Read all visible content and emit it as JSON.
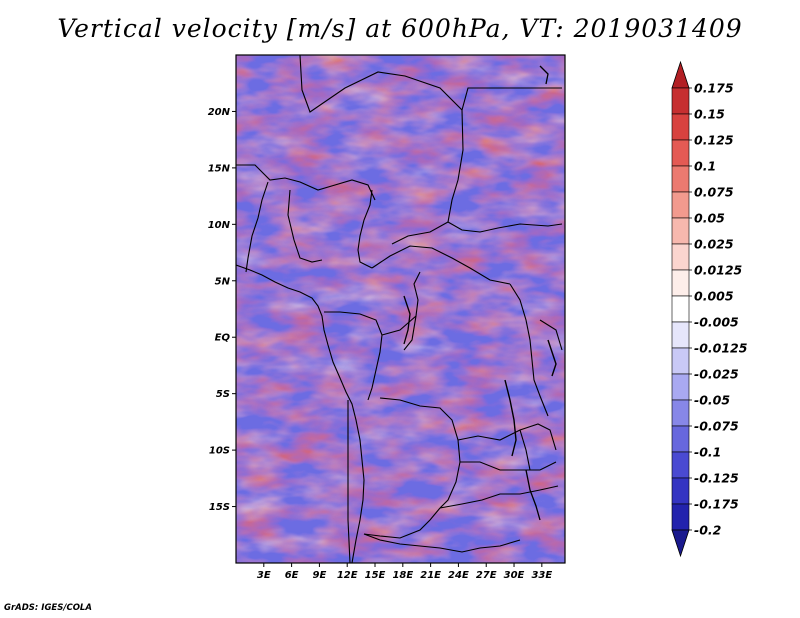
{
  "title": "Vertical velocity [m/s] at 600hPa, VT: 2019031409",
  "credit": "GrADS: IGES/COLA",
  "map": {
    "lon_range": [
      0,
      35.5
    ],
    "lat_range": [
      -20,
      25
    ],
    "lat_ticks": [
      {
        "value": 20,
        "label": "20N"
      },
      {
        "value": 15,
        "label": "15N"
      },
      {
        "value": 10,
        "label": "10N"
      },
      {
        "value": 5,
        "label": "5N"
      },
      {
        "value": 0,
        "label": "EQ"
      },
      {
        "value": -5,
        "label": "5S"
      },
      {
        "value": -10,
        "label": "10S"
      },
      {
        "value": -15,
        "label": "15S"
      }
    ],
    "lon_ticks": [
      {
        "value": 3,
        "label": "3E"
      },
      {
        "value": 6,
        "label": "6E"
      },
      {
        "value": 9,
        "label": "9E"
      },
      {
        "value": 12,
        "label": "12E"
      },
      {
        "value": 15,
        "label": "15E"
      },
      {
        "value": 18,
        "label": "18E"
      },
      {
        "value": 21,
        "label": "21E"
      },
      {
        "value": 24,
        "label": "24E"
      },
      {
        "value": 27,
        "label": "27E"
      },
      {
        "value": 30,
        "label": "30E"
      },
      {
        "value": 33,
        "label": "33E"
      }
    ]
  },
  "colorbar": {
    "labels": [
      "0.175",
      "0.15",
      "0.125",
      "0.1",
      "0.075",
      "0.05",
      "0.025",
      "0.0125",
      "0.005",
      "-0.005",
      "-0.0125",
      "-0.025",
      "-0.05",
      "-0.075",
      "-0.1",
      "-0.125",
      "-0.175",
      "-0.2"
    ],
    "colors": [
      "#b21f24",
      "#c62f30",
      "#d8423f",
      "#e45a54",
      "#ec7a70",
      "#f29a8e",
      "#f7b8ae",
      "#fbd5cf",
      "#fdeeea",
      "#ffffff",
      "#e6e6fb",
      "#c9c9f6",
      "#a9a9f1",
      "#8787e8",
      "#6767dd",
      "#4a4ad2",
      "#3434c2",
      "#2323ad",
      "#1a1a8e"
    ]
  }
}
